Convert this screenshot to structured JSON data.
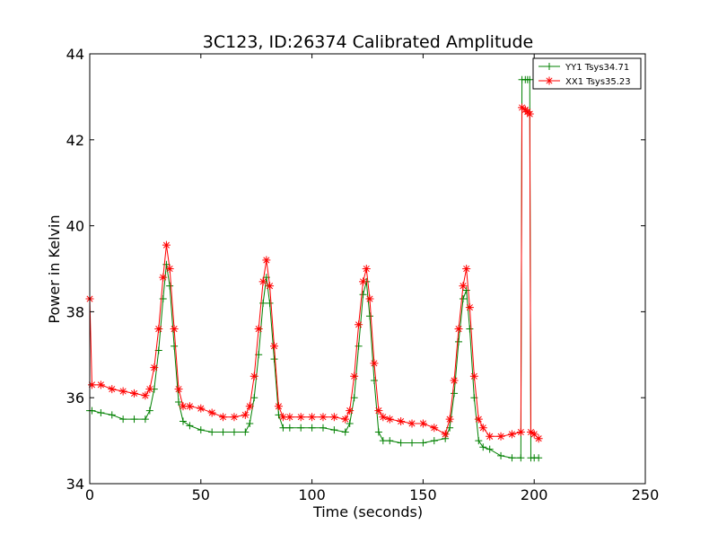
{
  "chart_data": {
    "type": "line",
    "title": "3C123, ID:26374 Calibrated Amplitude",
    "xlabel": "Time (seconds)",
    "ylabel": "Power in Kelvin",
    "xlim": [
      0,
      250
    ],
    "ylim": [
      34,
      44
    ],
    "x_ticks": [
      0,
      50,
      100,
      150,
      200,
      250
    ],
    "y_ticks": [
      34,
      36,
      38,
      40,
      42,
      44
    ],
    "grid": false,
    "legend_position": "top-right",
    "series": [
      {
        "name": "YY1 Tsys34.71",
        "color": "#008000",
        "marker": "plus",
        "x": [
          0,
          1,
          5,
          10,
          15,
          20,
          25,
          27,
          29,
          31,
          33,
          34.5,
          36,
          38,
          40,
          42,
          45,
          50,
          55,
          60,
          65,
          70,
          72,
          74,
          76,
          78,
          79.5,
          81,
          83,
          85,
          87,
          90,
          95,
          100,
          105,
          110,
          115,
          117,
          119,
          121,
          123,
          124.5,
          126,
          128,
          130,
          132,
          135,
          140,
          145,
          150,
          155,
          160,
          162,
          164,
          166,
          168,
          169.5,
          171,
          173,
          175,
          177,
          180,
          185,
          190,
          194,
          194.5,
          196,
          197,
          198,
          198.5,
          200,
          202
        ],
        "y": [
          35.7,
          35.7,
          35.65,
          35.6,
          35.5,
          35.5,
          35.5,
          35.7,
          36.2,
          37.1,
          38.3,
          39.1,
          38.6,
          37.2,
          35.9,
          35.45,
          35.35,
          35.25,
          35.2,
          35.2,
          35.2,
          35.2,
          35.4,
          36.0,
          37.0,
          38.2,
          38.8,
          38.2,
          36.9,
          35.6,
          35.3,
          35.3,
          35.3,
          35.3,
          35.3,
          35.25,
          35.2,
          35.4,
          36.0,
          37.2,
          38.4,
          38.7,
          37.9,
          36.4,
          35.2,
          35.0,
          35.0,
          34.95,
          34.95,
          34.95,
          35.0,
          35.05,
          35.3,
          36.1,
          37.3,
          38.3,
          38.5,
          37.6,
          36.0,
          35.0,
          34.85,
          34.8,
          34.65,
          34.6,
          34.6,
          43.4,
          43.4,
          43.4,
          43.4,
          34.6,
          34.6,
          34.6
        ]
      },
      {
        "name": "XX1 Tsys35.23",
        "color": "#ff0000",
        "marker": "star",
        "x": [
          0,
          1,
          5,
          10,
          15,
          20,
          25,
          27,
          29,
          31,
          33,
          34.5,
          36,
          38,
          40,
          42,
          45,
          50,
          55,
          60,
          65,
          70,
          72,
          74,
          76,
          78,
          79.5,
          81,
          83,
          85,
          87,
          90,
          95,
          100,
          105,
          110,
          115,
          117,
          119,
          121,
          123,
          124.5,
          126,
          128,
          130,
          132,
          135,
          140,
          145,
          150,
          155,
          160,
          162,
          164,
          166,
          168,
          169.5,
          171,
          173,
          175,
          177,
          180,
          185,
          190,
          194,
          194.5,
          196,
          197,
          198,
          198.5,
          200,
          202
        ],
        "y": [
          38.3,
          36.3,
          36.3,
          36.2,
          36.15,
          36.1,
          36.05,
          36.2,
          36.7,
          37.6,
          38.8,
          39.55,
          39.0,
          37.6,
          36.2,
          35.8,
          35.8,
          35.75,
          35.65,
          35.55,
          35.55,
          35.6,
          35.8,
          36.5,
          37.6,
          38.7,
          39.2,
          38.6,
          37.2,
          35.8,
          35.55,
          35.55,
          35.55,
          35.55,
          35.55,
          35.55,
          35.5,
          35.7,
          36.5,
          37.7,
          38.7,
          39.0,
          38.3,
          36.8,
          35.7,
          35.55,
          35.5,
          35.45,
          35.4,
          35.4,
          35.3,
          35.15,
          35.5,
          36.4,
          37.6,
          38.6,
          39.0,
          38.1,
          36.5,
          35.5,
          35.3,
          35.1,
          35.1,
          35.15,
          35.2,
          42.75,
          42.7,
          42.65,
          42.6,
          35.2,
          35.15,
          35.05
        ]
      }
    ]
  }
}
